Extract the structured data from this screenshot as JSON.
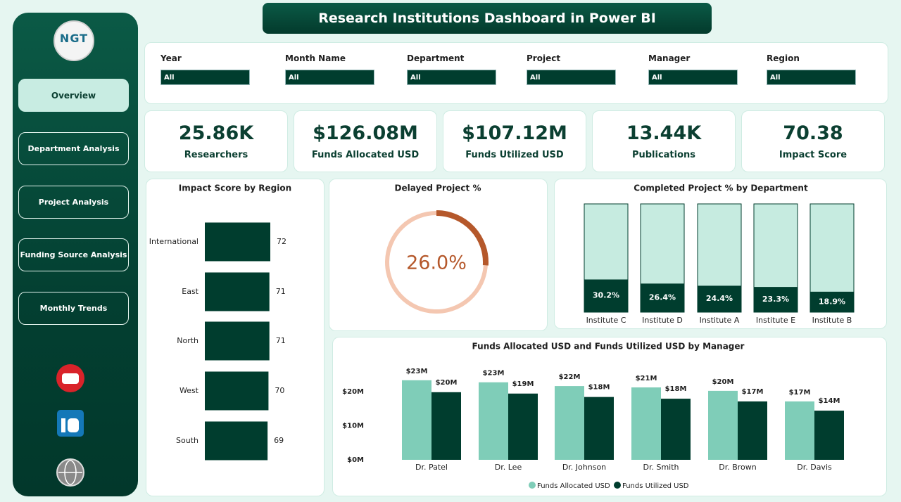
{
  "header": {
    "title": "Research Institutions Dashboard in Power BI"
  },
  "logo": {
    "text": "NGT"
  },
  "nav": [
    "Overview",
    "Department Analysis",
    "Project Analysis",
    "Funding Source Analysis",
    "Monthly Trends"
  ],
  "filters": [
    {
      "label": "Year",
      "value": "All"
    },
    {
      "label": "Month Name",
      "value": "All"
    },
    {
      "label": "Department",
      "value": "All"
    },
    {
      "label": "Project",
      "value": "All"
    },
    {
      "label": "Manager",
      "value": "All"
    },
    {
      "label": "Region",
      "value": "All"
    }
  ],
  "kpis": [
    {
      "value": "25.86K",
      "label": "Researchers"
    },
    {
      "value": "$126.08M",
      "label": "Funds Allocated USD"
    },
    {
      "value": "$107.12M",
      "label": "Funds Utilized USD"
    },
    {
      "value": "13.44K",
      "label": "Publications"
    },
    {
      "value": "70.38",
      "label": "Impact Score"
    }
  ],
  "chart_data": [
    {
      "type": "hbar",
      "title": "Impact Score by Region",
      "categories": [
        "International",
        "East",
        "North",
        "West",
        "South"
      ],
      "values": [
        72,
        71,
        71,
        70,
        69
      ],
      "color": "#003d2e"
    },
    {
      "type": "donut",
      "title": "Delayed Project %",
      "values": [
        26.0,
        74.0
      ],
      "value_labels": [
        "26.0%",
        null
      ],
      "colors": [
        "#b5582b",
        "#f4c7b1"
      ]
    },
    {
      "type": "stackedbar",
      "title": "Completed Project % by Department",
      "categories": [
        "Institute C",
        "Institute D",
        "Institute A",
        "Institute E",
        "Institute B"
      ],
      "values": [
        30.2,
        26.4,
        24.4,
        23.3,
        18.9
      ],
      "value_labels": [
        "30.2%",
        "26.4%",
        "24.4%",
        "23.3%",
        "18.9%"
      ],
      "color": "#003d2e",
      "background_color": "#c6ebe0",
      "ylim": [
        0,
        100
      ]
    },
    {
      "type": "groupedbar",
      "title": "Funds Allocated USD and Funds Utilized USD by Manager",
      "categories": [
        "Dr. Patel",
        "Dr. Lee",
        "Dr. Johnson",
        "Dr. Smith",
        "Dr. Brown",
        "Dr. Davis"
      ],
      "series": [
        {
          "name": "Funds Allocated USD",
          "color": "#7fcdb8",
          "values": [
            23300000,
            22700000,
            21600000,
            21200000,
            20200000,
            17100000
          ],
          "value_labels": [
            "$23M",
            "$23M",
            "$22M",
            "$21M",
            "$20M",
            "$17M"
          ]
        },
        {
          "name": "Funds Utilized USD",
          "color": "#003d2e",
          "values": [
            19800000,
            19400000,
            18400000,
            17900000,
            17100000,
            14400000
          ],
          "value_labels": [
            "$20M",
            "$19M",
            "$18M",
            "$18M",
            "$17M",
            "$14M"
          ]
        }
      ],
      "ylim": [
        0,
        28000000
      ],
      "yticks": [
        {
          "value": 0,
          "label": "$0M"
        },
        {
          "value": 10000000,
          "label": "$10M"
        },
        {
          "value": 20000000,
          "label": "$20M"
        }
      ],
      "grid": false,
      "legend": "bottom"
    }
  ]
}
